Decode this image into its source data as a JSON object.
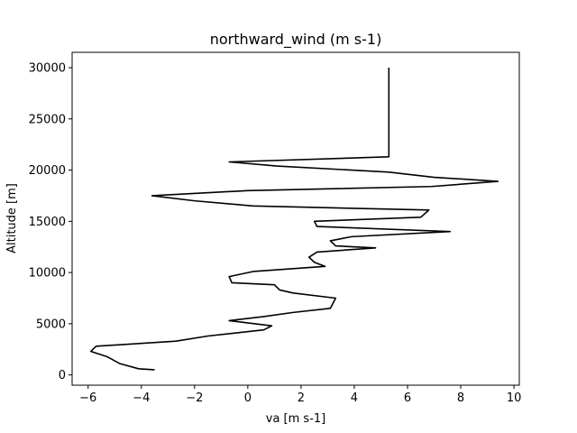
{
  "chart_data": {
    "type": "line",
    "title": "northward_wind (m s-1)",
    "xlabel": "va [m s-1]",
    "ylabel": "Altitude [m]",
    "xlim": [
      -6.6,
      10.2
    ],
    "ylim": [
      -1000,
      31500
    ],
    "xticks": [
      -6,
      -4,
      -2,
      0,
      2,
      4,
      6,
      8,
      10
    ],
    "xtick_labels": [
      "−6",
      "−4",
      "−2",
      "0",
      "2",
      "4",
      "6",
      "8",
      "10"
    ],
    "yticks": [
      0,
      5000,
      10000,
      15000,
      20000,
      25000,
      30000
    ],
    "ytick_labels": [
      "0",
      "5000",
      "10000",
      "15000",
      "20000",
      "25000",
      "30000"
    ],
    "grid": false,
    "line_color": "#000000",
    "series": [
      {
        "x": [
          -3.5,
          -4.1,
          -4.8,
          -5.3,
          -5.9,
          -5.7,
          -2.7,
          -1.5,
          0.6,
          0.9,
          -0.7,
          0.6,
          1.7,
          3.1,
          3.3,
          1.7,
          1.2,
          1.0,
          -0.6,
          -0.7,
          0.2,
          2.9,
          2.5,
          2.3,
          2.6,
          4.8,
          3.3,
          3.1,
          3.9,
          7.6,
          2.6,
          2.5,
          6.5,
          6.8,
          0.2,
          -2.0,
          -3.6,
          0.0,
          6.9,
          9.4,
          7.0,
          5.3,
          1.1,
          -0.7,
          5.3,
          5.3
        ],
        "y": [
          500,
          600,
          1100,
          1800,
          2300,
          2800,
          3300,
          3800,
          4400,
          4800,
          5300,
          5700,
          6100,
          6500,
          7500,
          8000,
          8300,
          8800,
          9000,
          9600,
          10100,
          10600,
          11000,
          11500,
          12000,
          12400,
          12600,
          13100,
          13500,
          14000,
          14500,
          15000,
          15400,
          16100,
          16500,
          17000,
          17500,
          18000,
          18400,
          18900,
          19300,
          19800,
          20400,
          20800,
          21300,
          30000
        ]
      }
    ]
  }
}
